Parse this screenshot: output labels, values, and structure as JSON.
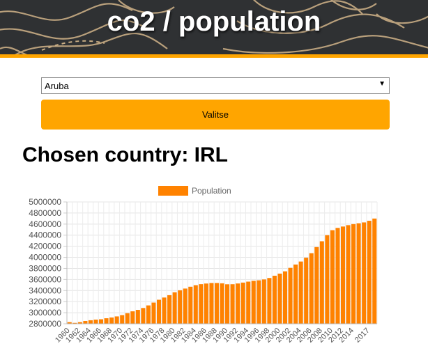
{
  "header": {
    "title": "co2 / population"
  },
  "form": {
    "country_selected": "Aruba",
    "submit_label": "Valitse"
  },
  "result": {
    "heading": "Chosen country: IRL"
  },
  "colors": {
    "accent": "#ffa500",
    "bar": "#ff8200",
    "header_bg": "#2f3133",
    "topo_lines": "#c9ad84"
  },
  "icons": {
    "select_arrow": "▼"
  },
  "chart_data": {
    "type": "bar",
    "legend": "top",
    "grid": true,
    "ylim": [
      2800000,
      5000000
    ],
    "yticks": [
      "2800000",
      "3000000",
      "3200000",
      "3400000",
      "3600000",
      "3800000",
      "4000000",
      "4200000",
      "4400000",
      "4600000",
      "4800000",
      "5000000"
    ],
    "xticks": [
      "1960",
      "1962",
      "1964",
      "1966",
      "1968",
      "1970",
      "1972",
      "1974",
      "1976",
      "1978",
      "1980",
      "1982",
      "1984",
      "1986",
      "1988",
      "1990",
      "1992",
      "1994",
      "1996",
      "1998",
      "2000",
      "2002",
      "2004",
      "2006",
      "2008",
      "2010",
      "2012",
      "2014",
      "2017"
    ],
    "categories": [
      "1960",
      "1961",
      "1962",
      "1963",
      "1964",
      "1965",
      "1966",
      "1967",
      "1968",
      "1969",
      "1970",
      "1971",
      "1972",
      "1973",
      "1974",
      "1975",
      "1976",
      "1977",
      "1978",
      "1979",
      "1980",
      "1981",
      "1982",
      "1983",
      "1984",
      "1985",
      "1986",
      "1987",
      "1988",
      "1989",
      "1990",
      "1991",
      "1992",
      "1993",
      "1994",
      "1995",
      "1996",
      "1997",
      "1998",
      "1999",
      "2000",
      "2001",
      "2002",
      "2003",
      "2004",
      "2005",
      "2006",
      "2007",
      "2008",
      "2009",
      "2010",
      "2011",
      "2012",
      "2013",
      "2014",
      "2015",
      "2016",
      "2017",
      "2018"
    ],
    "series": [
      {
        "name": "Population",
        "values": [
          2830000,
          2816000,
          2830000,
          2850000,
          2864000,
          2876000,
          2882000,
          2900000,
          2914000,
          2933000,
          2957000,
          2991000,
          3025000,
          3051000,
          3085000,
          3132000,
          3183000,
          3234000,
          3274000,
          3317000,
          3369000,
          3405000,
          3436000,
          3469000,
          3497000,
          3515000,
          3527000,
          3537000,
          3537000,
          3531000,
          3513000,
          3514000,
          3528000,
          3544000,
          3561000,
          3577000,
          3585000,
          3600000,
          3627000,
          3668000,
          3706000,
          3747000,
          3810000,
          3870000,
          3924000,
          3993000,
          4075000,
          4185000,
          4290000,
          4400000,
          4490000,
          4531000,
          4556000,
          4581000,
          4600000,
          4615000,
          4630000,
          4660000,
          4700000
        ]
      }
    ]
  }
}
